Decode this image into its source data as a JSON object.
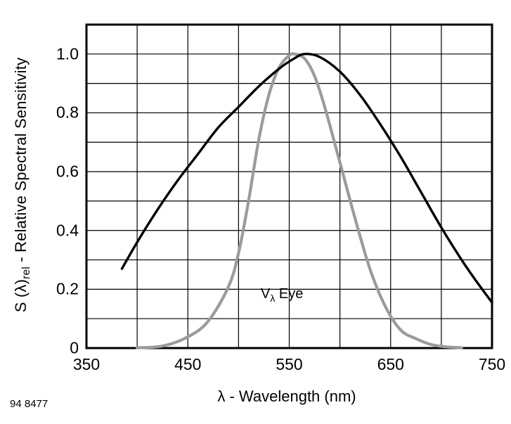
{
  "figure_label": "94 8477",
  "chart_data": {
    "type": "line",
    "title": "",
    "xlabel": "λ - Wavelength (nm)",
    "ylabel": "S (λ)rel - Relative Spectral Sensitivity",
    "ylabel_parts": {
      "main": "S (λ)",
      "sub": "rel",
      "rest": " - Relative Spectral Sensitivity"
    },
    "annotation": {
      "main": "V",
      "sub": "λ",
      "rest": " Eye"
    },
    "xlim": [
      350,
      750
    ],
    "ylim": [
      0,
      1.1
    ],
    "x_grid_step": 50,
    "y_grid_step": 0.1,
    "grid": true,
    "x_ticks": [
      350,
      450,
      550,
      650,
      750
    ],
    "x_tick_labels": [
      "350",
      "450",
      "550",
      "650",
      "750"
    ],
    "y_ticks": [
      0,
      0.2,
      0.4,
      0.6,
      0.8,
      1.0
    ],
    "y_tick_labels": [
      "0",
      "0.2",
      "0.4",
      "0.6",
      "0.8",
      "1.0"
    ],
    "series": [
      {
        "name": "v-lambda-eye",
        "color": "#9b9b9b",
        "width": 4.2,
        "x": [
          400,
          425,
          450,
          470,
          490,
          500,
          510,
          520,
          530,
          540,
          550,
          555,
          565,
          575,
          585,
          600,
          615,
          630,
          645,
          660,
          675,
          690,
          705,
          720
        ],
        "y": [
          0.001,
          0.007,
          0.038,
          0.091,
          0.208,
          0.323,
          0.503,
          0.71,
          0.862,
          0.954,
          0.995,
          1.0,
          0.985,
          0.925,
          0.82,
          0.631,
          0.44,
          0.265,
          0.14,
          0.061,
          0.032,
          0.012,
          0.004,
          0.001
        ]
      },
      {
        "name": "relative-spectral-sensitivity",
        "color": "#000000",
        "width": 3.4,
        "x": [
          385,
          400,
          420,
          440,
          460,
          480,
          500,
          520,
          540,
          555,
          565,
          580,
          600,
          620,
          640,
          660,
          680,
          700,
          720,
          735,
          750
        ],
        "y": [
          0.27,
          0.36,
          0.47,
          0.57,
          0.66,
          0.75,
          0.82,
          0.89,
          0.95,
          0.985,
          1.0,
          0.99,
          0.94,
          0.86,
          0.76,
          0.65,
          0.53,
          0.41,
          0.3,
          0.225,
          0.155
        ]
      }
    ]
  }
}
